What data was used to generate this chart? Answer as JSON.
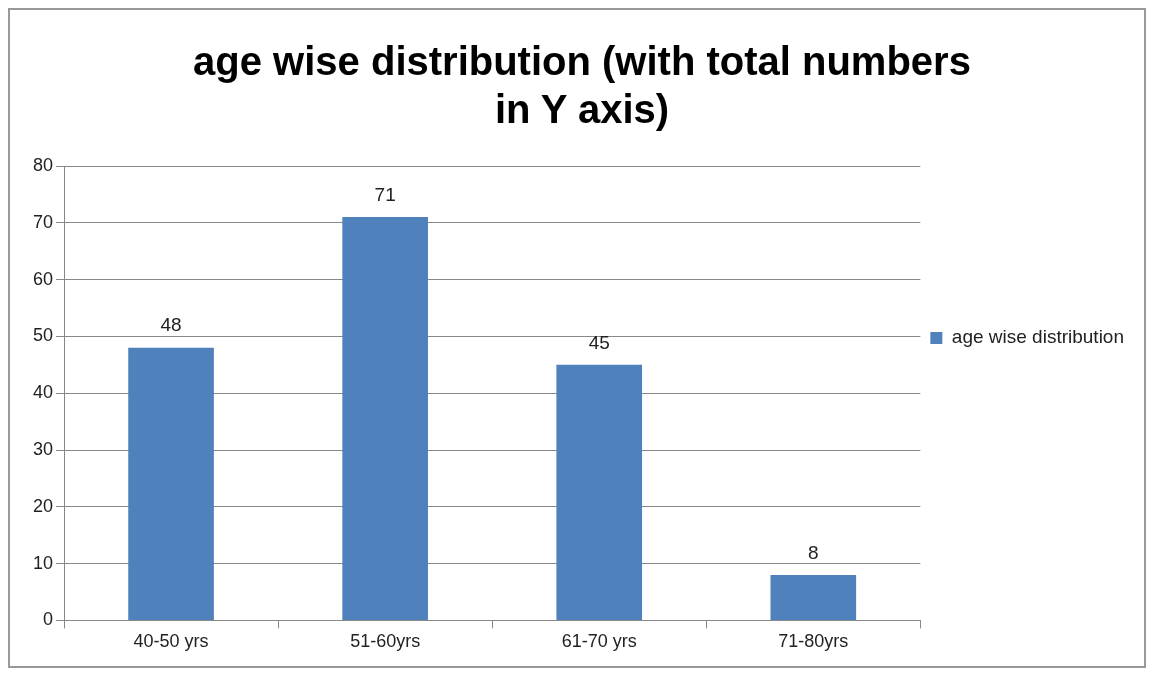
{
  "chart_data": {
    "type": "bar",
    "title": "age wise distribution (with total numbers in Y axis)",
    "categories": [
      "40-50 yrs",
      "51-60yrs",
      "61-70 yrs",
      "71-80yrs"
    ],
    "series": [
      {
        "name": "age wise distribution",
        "color": "#4f81bd",
        "values": [
          48,
          71,
          45,
          8
        ]
      }
    ],
    "ylim": [
      0,
      80
    ],
    "yticks": [
      0,
      10,
      20,
      30,
      40,
      50,
      60,
      70,
      80
    ],
    "grid": "y",
    "legend": "right",
    "data_labels": true
  }
}
